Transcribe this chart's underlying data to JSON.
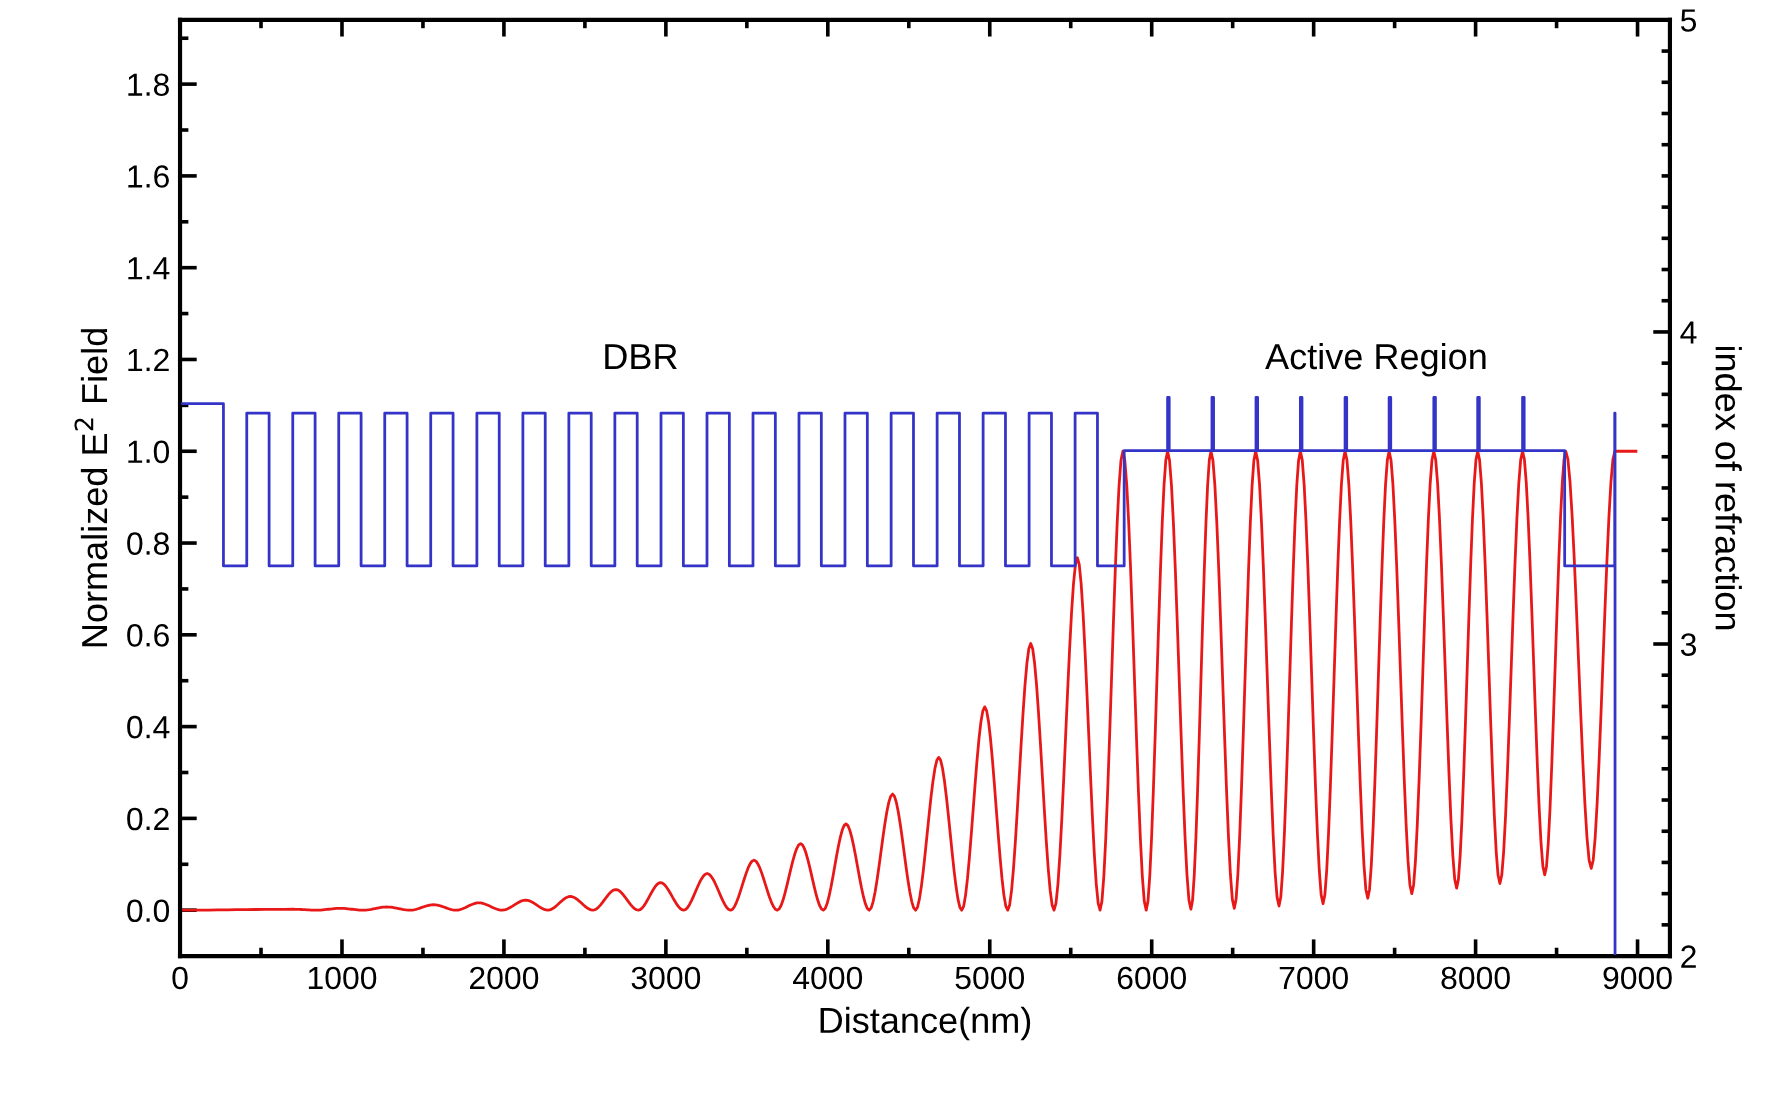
{
  "chart_data": {
    "type": "line",
    "xlabel": "Distance(nm)",
    "ylabel": "Normalized E$^{2}$ Field",
    "y2label": "index of refraction",
    "xlim": [
      0,
      9200
    ],
    "xticks": [
      0,
      1000,
      2000,
      3000,
      4000,
      5000,
      6000,
      7000,
      8000,
      9000
    ],
    "ylim": [
      -0.1,
      1.94
    ],
    "yticks": [
      {
        "value": 0,
        "label": "0.0"
      },
      0.2,
      0.4,
      0.6,
      0.8,
      {
        "value": 1,
        "label": "1.0"
      },
      1.2,
      1.4,
      1.6,
      1.8
    ],
    "y2lim": [
      2,
      5
    ],
    "y2ticks": [
      2,
      3,
      4,
      5
    ],
    "grid": false,
    "legend": false,
    "annotations": [
      "DBR",
      "Active Region"
    ],
    "series": [
      {
        "color": "#e81818",
        "x": [
          0,
          701,
          845,
          989,
          1133,
          1277,
          1421,
          1566,
          1705,
          1845,
          1990,
          2135,
          2272,
          2410,
          2550,
          2691,
          2830,
          2967,
          3110,
          3255,
          3400,
          3544,
          3688,
          3832,
          3972,
          4112,
          4256,
          4400,
          4542,
          4685,
          4827,
          4969,
          5111,
          5253,
          5397,
          5541,
          5681,
          5822,
          5966,
          6098,
          6242,
          6366,
          6510,
          6642,
          6786,
          6918,
          7058,
          7194,
          7334,
          7466,
          7606,
          7742,
          7883,
          8013,
          8150,
          8290,
          8427,
          8557,
          8714,
          8860,
          8990
        ],
        "values": [
          0,
          0.002,
          0,
          0.004,
          0,
          0.007,
          0,
          0.012,
          0,
          0.016,
          0,
          0.022,
          0,
          0.03,
          0,
          0.045,
          0,
          0.06,
          0,
          0.08,
          0,
          0.109,
          0,
          0.145,
          0,
          0.188,
          0,
          0.253,
          0,
          0.333,
          0,
          0.443,
          0,
          0.581,
          0,
          0.768,
          0,
          1.0,
          0,
          1.0,
          0.002,
          1.0,
          0.004,
          1.0,
          0.009,
          1.0,
          0.014,
          1.0,
          0.026,
          1.0,
          0.036,
          1.0,
          0.048,
          1.0,
          0.058,
          1.0,
          0.077,
          1.0,
          0.091,
          1.0,
          1.0
        ]
      },
      {
        "type": "step",
        "axis": "y2",
        "color": "#3434c8",
        "x": [
          0,
          268,
          412,
          550,
          696,
          834,
          980,
          1118,
          1264,
          1402,
          1548,
          1686,
          1833,
          1971,
          2117,
          2255,
          2401,
          2539,
          2685,
          2823,
          2970,
          3108,
          3254,
          3392,
          3538,
          3676,
          3822,
          3960,
          4106,
          4244,
          4391,
          4529,
          4675,
          4813,
          4959,
          5097,
          5243,
          5381,
          5527,
          5665,
          5830,
          6098,
          6108,
          6372,
          6382,
          6644,
          6654,
          6918,
          6928,
          7194,
          7204,
          7466,
          7476,
          7742,
          7752,
          8013,
          8023,
          8290,
          8300,
          8550,
          8859,
          8861
        ],
        "values": [
          3.77,
          3.25,
          3.74,
          3.25,
          3.74,
          3.25,
          3.74,
          3.25,
          3.74,
          3.25,
          3.74,
          3.25,
          3.74,
          3.25,
          3.74,
          3.25,
          3.74,
          3.25,
          3.74,
          3.25,
          3.74,
          3.25,
          3.74,
          3.25,
          3.74,
          3.25,
          3.74,
          3.25,
          3.74,
          3.25,
          3.74,
          3.25,
          3.74,
          3.25,
          3.74,
          3.25,
          3.74,
          3.25,
          3.74,
          3.25,
          3.62,
          3.79,
          3.62,
          3.79,
          3.62,
          3.79,
          3.62,
          3.79,
          3.62,
          3.79,
          3.62,
          3.79,
          3.62,
          3.79,
          3.62,
          3.79,
          3.62,
          3.79,
          3.62,
          3.25,
          3.74,
          2.0
        ]
      }
    ]
  }
}
